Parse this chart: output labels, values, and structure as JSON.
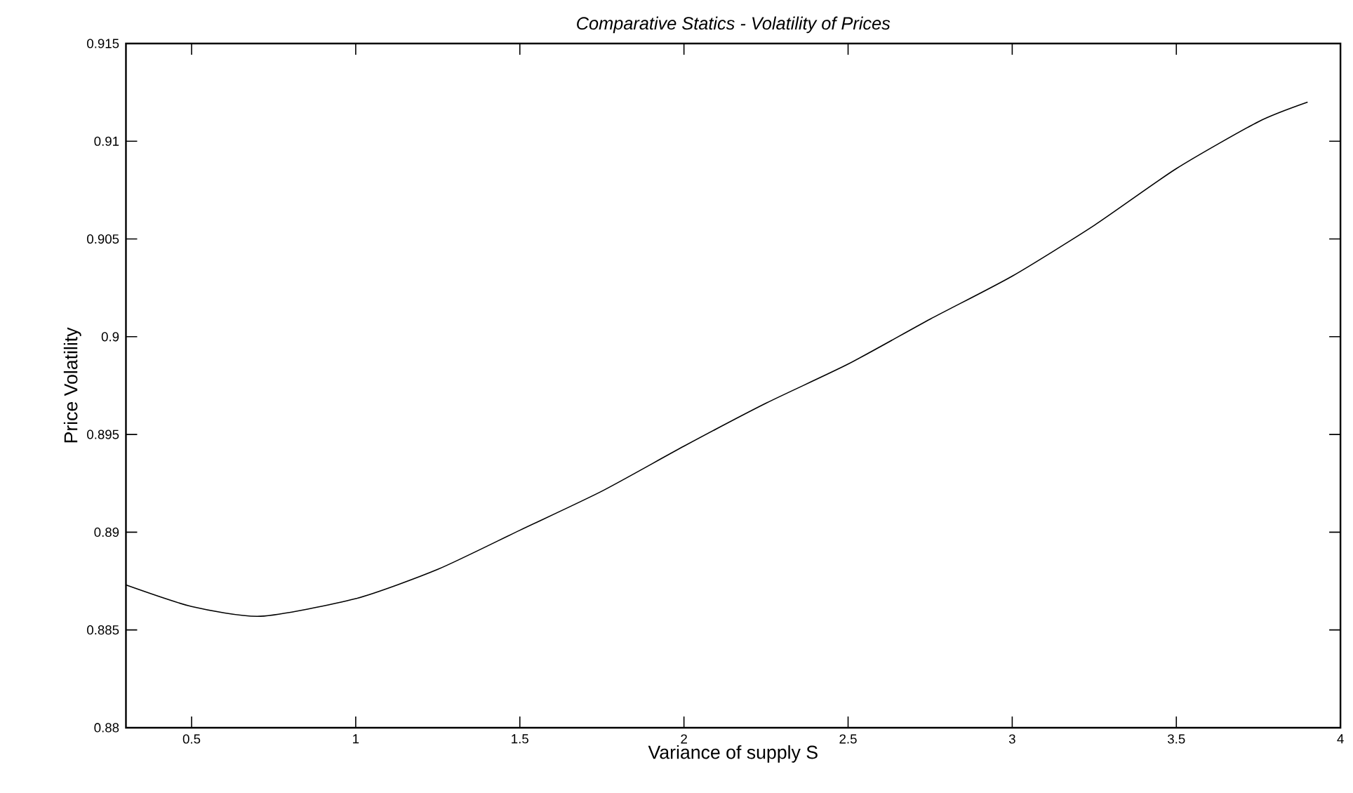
{
  "chart_data": {
    "type": "line",
    "title": "Comparative Statics - Volatility of Prices",
    "xlabel": "Variance of supply S",
    "ylabel": "Price Volatility",
    "x": [
      0.3,
      0.5,
      0.71,
      1.0,
      1.25,
      1.5,
      1.75,
      2.0,
      2.25,
      2.5,
      2.75,
      3.0,
      3.25,
      3.5,
      3.75,
      3.9
    ],
    "series": [
      {
        "color": "#000000",
        "values": [
          0.8873,
          0.8862,
          0.8857,
          0.8866,
          0.8881,
          0.8901,
          0.8921,
          0.8944,
          0.8966,
          0.8986,
          0.9009,
          0.9031,
          0.9057,
          0.9086,
          0.911,
          0.912
        ]
      }
    ],
    "xlim": [
      0.3,
      4
    ],
    "ylim": [
      0.88,
      0.915
    ],
    "xticks": [
      0.5,
      1,
      1.5,
      2,
      2.5,
      3,
      3.5,
      4
    ],
    "yticks": [
      0.88,
      0.885,
      0.89,
      0.895,
      0.9,
      0.905,
      0.91,
      0.915
    ],
    "grid": false,
    "marker": "none",
    "line_style": "solid"
  }
}
